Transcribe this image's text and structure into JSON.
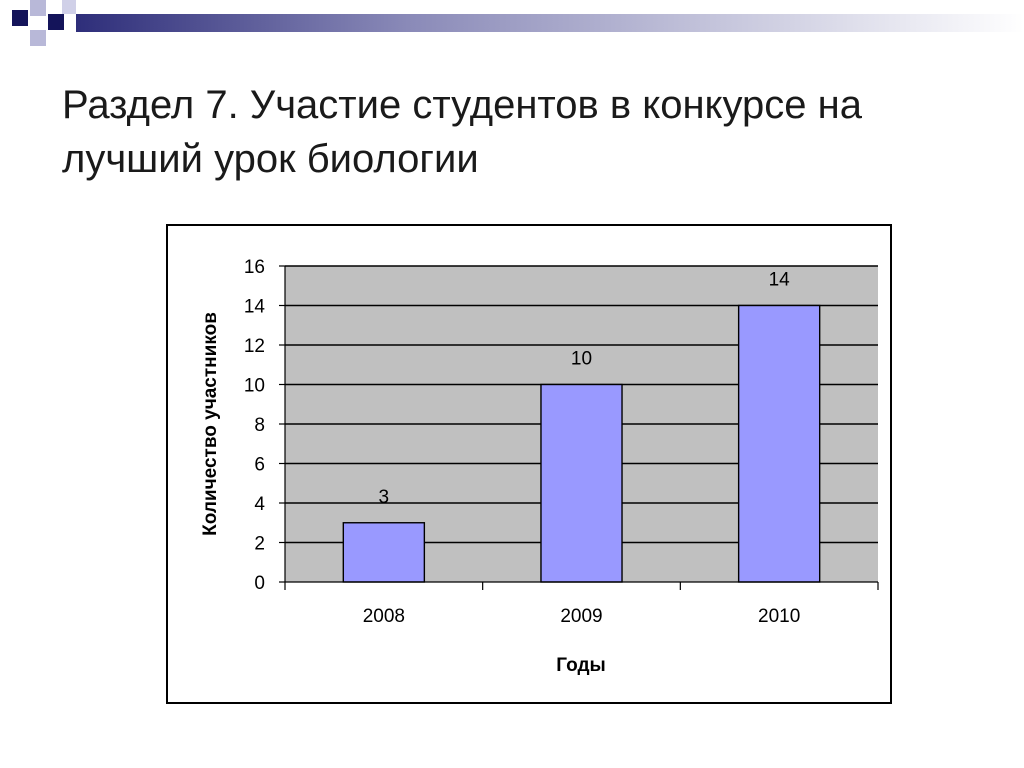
{
  "slide": {
    "title": "Раздел 7. Участие студентов в конкурсе на лучший урок биологии"
  },
  "chart_data": {
    "type": "bar",
    "title": "",
    "categories": [
      "2008",
      "2009",
      "2010"
    ],
    "values": [
      3,
      10,
      14
    ],
    "data_labels": [
      "3",
      "10",
      "14"
    ],
    "xlabel": "Годы",
    "ylabel": "Количество участников",
    "ylim": [
      0,
      16
    ],
    "yticks": [
      "0",
      "2",
      "4",
      "6",
      "8",
      "10",
      "12",
      "14",
      "16"
    ],
    "grid": true,
    "legend": "none",
    "colors": {
      "bar_fill": "#9999ff",
      "plot_background": "#c0c0c0",
      "gridline": "#000000"
    }
  }
}
